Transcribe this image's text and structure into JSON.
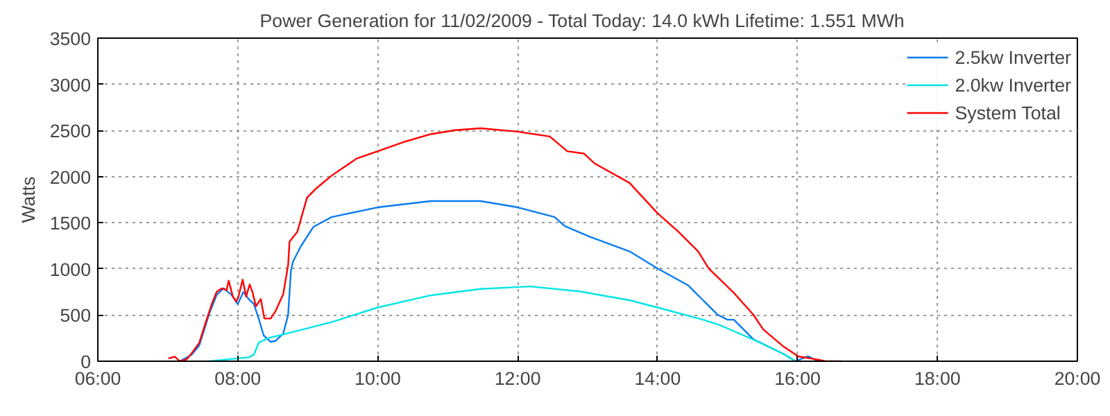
{
  "chart_data": {
    "type": "line",
    "title": "Power Generation for 11/02/2009 - Total Today: 14.0 kWh   Lifetime: 1.551 MWh",
    "ylabel": "Watts",
    "xlim": [
      6,
      20
    ],
    "ylim": [
      0,
      3500
    ],
    "xticks": [
      {
        "value": 6,
        "label": "06:00"
      },
      {
        "value": 8,
        "label": "08:00"
      },
      {
        "value": 10,
        "label": "10:00"
      },
      {
        "value": 12,
        "label": "12:00"
      },
      {
        "value": 14,
        "label": "14:00"
      },
      {
        "value": 16,
        "label": "16:00"
      },
      {
        "value": 18,
        "label": "18:00"
      },
      {
        "value": 20,
        "label": "20:00"
      }
    ],
    "yticks": [
      0,
      500,
      1000,
      1500,
      2000,
      2500,
      3000,
      3500
    ],
    "grid": true,
    "legend": "top right",
    "line_style": "solid",
    "marker": "none",
    "series": [
      {
        "name": "2.5kw Inverter",
        "color": "#0a7cf0",
        "x": [
          7.17,
          7.34,
          7.45,
          7.59,
          7.7,
          7.8,
          7.91,
          8.0,
          8.08,
          8.16,
          8.23,
          8.3,
          8.37,
          8.47,
          8.54,
          8.65,
          8.72,
          8.76,
          8.79,
          8.9,
          9.08,
          9.34,
          10.0,
          10.76,
          11.47,
          12.0,
          12.53,
          12.67,
          13.03,
          13.6,
          14.0,
          14.44,
          14.65,
          14.86,
          15.0,
          15.09,
          15.37,
          15.8,
          15.97,
          16.15,
          16.3
        ],
        "values": [
          0,
          70,
          170,
          510,
          720,
          790,
          720,
          620,
          750,
          670,
          620,
          460,
          280,
          210,
          220,
          300,
          500,
          980,
          1080,
          1243,
          1455,
          1561,
          1667,
          1735,
          1735,
          1667,
          1561,
          1466,
          1349,
          1190,
          1005,
          820,
          661,
          503,
          450,
          450,
          238,
          79,
          0,
          53,
          0
        ]
      },
      {
        "name": "2.0kw Inverter",
        "color": "#00e5e5",
        "x": [
          7.59,
          8.16,
          8.23,
          8.3,
          8.44,
          8.65,
          9.34,
          10.0,
          10.76,
          11.47,
          12.18,
          12.88,
          13.6,
          14.0,
          14.65,
          14.87,
          15.0,
          15.44,
          15.8,
          15.97
        ],
        "values": [
          0,
          42,
          70,
          200,
          253,
          290,
          423,
          582,
          714,
          783,
          810,
          757,
          661,
          582,
          450,
          397,
          355,
          212,
          79,
          0
        ]
      },
      {
        "name": "System Total",
        "color": "#ff0000",
        "x": [
          7.01,
          7.1,
          7.17,
          7.27,
          7.34,
          7.45,
          7.56,
          7.63,
          7.7,
          7.77,
          7.84,
          7.87,
          7.93,
          7.98,
          8.01,
          8.07,
          8.12,
          8.17,
          8.21,
          8.26,
          8.33,
          8.38,
          8.47,
          8.54,
          8.65,
          8.72,
          8.74,
          8.85,
          8.99,
          9.13,
          9.34,
          9.7,
          10.0,
          10.4,
          10.76,
          11.11,
          11.47,
          12.0,
          12.46,
          12.71,
          12.95,
          13.1,
          13.6,
          14.0,
          14.3,
          14.58,
          14.73,
          15.09,
          15.37,
          15.51,
          15.8,
          16.01,
          16.3,
          16.4,
          16.62
        ],
        "values": [
          30,
          50,
          0,
          20,
          84,
          200,
          463,
          621,
          753,
          789,
          770,
          874,
          700,
          647,
          700,
          884,
          700,
          832,
          750,
          595,
          674,
          463,
          463,
          542,
          726,
          1042,
          1296,
          1400,
          1772,
          1878,
          2010,
          2196,
          2275,
          2381,
          2460,
          2503,
          2524,
          2487,
          2434,
          2275,
          2249,
          2143,
          1931,
          1603,
          1402,
          1190,
          1005,
          741,
          503,
          344,
          159,
          53,
          16,
          0,
          0
        ]
      }
    ]
  }
}
